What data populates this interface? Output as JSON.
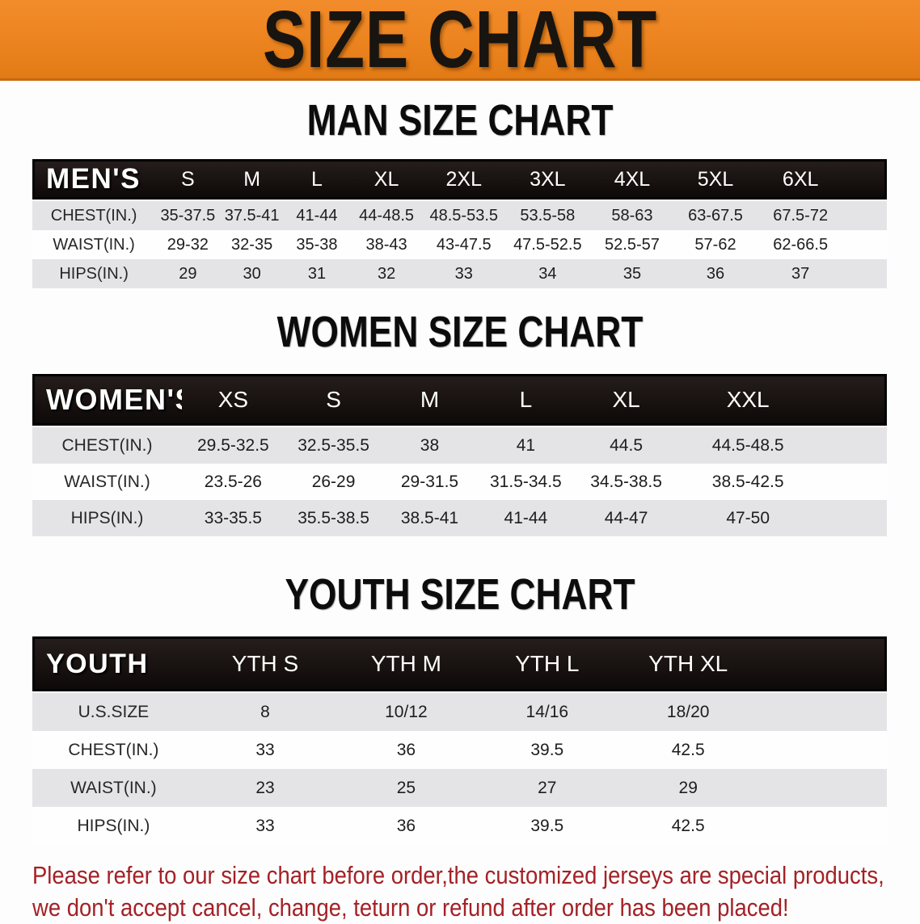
{
  "banner": {
    "title": "SIZE CHART"
  },
  "sections": [
    {
      "title": "MAN SIZE CHART",
      "table": {
        "header_label": "MEN'S",
        "columns": [
          "S",
          "M",
          "L",
          "XL",
          "2XL",
          "3XL",
          "4XL",
          "5XL",
          "6XL"
        ],
        "rows": [
          {
            "label": "CHEST(IN.)",
            "values": [
              "35-37.5",
              "37.5-41",
              "41-44",
              "44-48.5",
              "48.5-53.5",
              "53.5-58",
              "58-63",
              "63-67.5",
              "67.5-72"
            ]
          },
          {
            "label": "WAIST(IN.)",
            "values": [
              "29-32",
              "32-35",
              "35-38",
              "38-43",
              "43-47.5",
              "47.5-52.5",
              "52.5-57",
              "57-62",
              "62-66.5"
            ]
          },
          {
            "label": "HIPS(IN.)",
            "values": [
              "29",
              "30",
              "31",
              "32",
              "33",
              "34",
              "35",
              "36",
              "37"
            ]
          }
        ]
      }
    },
    {
      "title": "WOMEN SIZE CHART",
      "table": {
        "header_label": "WOMEN'S",
        "columns": [
          "XS",
          "S",
          "M",
          "L",
          "XL",
          "XXL"
        ],
        "rows": [
          {
            "label": "CHEST(IN.)",
            "values": [
              "29.5-32.5",
              "32.5-35.5",
              "38",
              "41",
              "44.5",
              "44.5-48.5"
            ]
          },
          {
            "label": "WAIST(IN.)",
            "values": [
              "23.5-26",
              "26-29",
              "29-31.5",
              "31.5-34.5",
              "34.5-38.5",
              "38.5-42.5"
            ]
          },
          {
            "label": "HIPS(IN.)",
            "values": [
              "33-35.5",
              "35.5-38.5",
              "38.5-41",
              "41-44",
              "44-47",
              "47-50"
            ]
          }
        ]
      }
    },
    {
      "title": "YOUTH SIZE CHART",
      "table": {
        "header_label": "YOUTH",
        "columns": [
          "YTH S",
          "YTH M",
          "YTH L",
          "YTH XL"
        ],
        "rows": [
          {
            "label": "U.S.SIZE",
            "values": [
              "8",
              "10/12",
              "14/16",
              "18/20"
            ]
          },
          {
            "label": "CHEST(IN.)",
            "values": [
              "33",
              "36",
              "39.5",
              "42.5"
            ]
          },
          {
            "label": "WAIST(IN.)",
            "values": [
              "23",
              "25",
              "27",
              "29"
            ]
          },
          {
            "label": "HIPS(IN.)",
            "values": [
              "33",
              "36",
              "39.5",
              "42.5"
            ]
          }
        ]
      }
    }
  ],
  "disclaimer": {
    "line1": "Please refer to our size chart before order,the customized jerseys are special products,",
    "line2": "we don't accept cancel, change, teturn or refund after order has been placed!"
  },
  "colors": {
    "banner_orange": "#ec8420",
    "header_black": "#17110f",
    "row_gray": "#e4e4e6",
    "row_white": "#fefefe",
    "disclaimer_red": "#a32126"
  }
}
